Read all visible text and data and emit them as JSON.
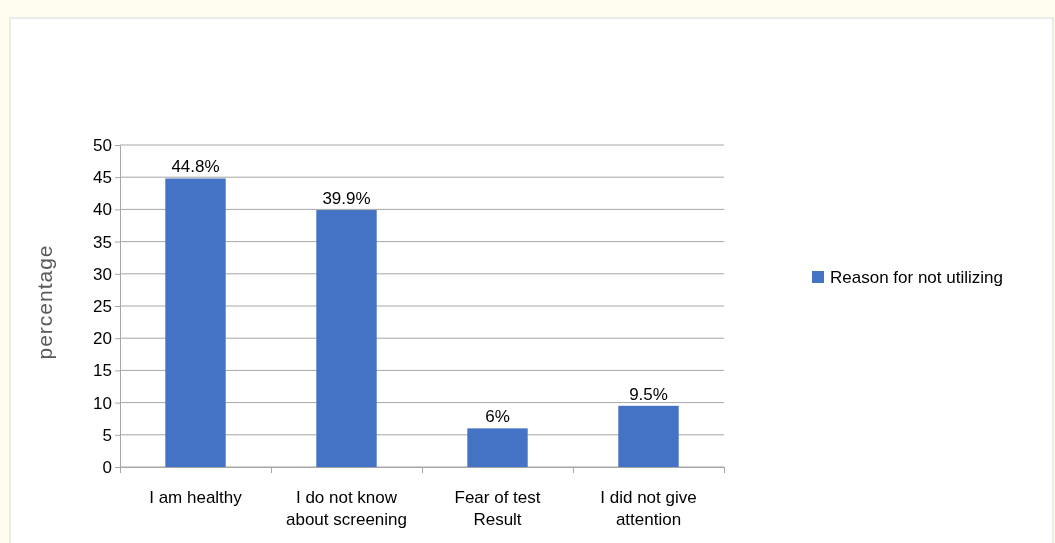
{
  "chart_data": {
    "type": "bar",
    "ylabel": "percentage",
    "categories": [
      "I am healthy",
      "I do not know about screening",
      "Fear of test Result",
      "I did not give attention"
    ],
    "series": [
      {
        "name": "Reason for not utilizing",
        "color": "#4472c4",
        "values": [
          44.8,
          39.9,
          6,
          9.5
        ],
        "value_labels": [
          "44.8%",
          "39.9%",
          "6%",
          "9.5%"
        ]
      }
    ],
    "ylim": [
      0,
      50
    ],
    "yticks": [
      0,
      5,
      10,
      15,
      20,
      25,
      30,
      35,
      40,
      45,
      50
    ],
    "grid": "y",
    "legend": "right"
  }
}
